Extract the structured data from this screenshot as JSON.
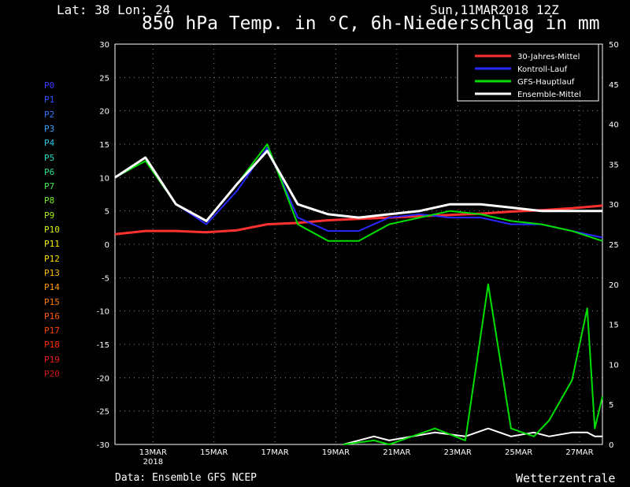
{
  "header": {
    "location": "Lat: 38 Lon: 24",
    "run": "Sun,11MAR2018 12Z",
    "title": "850 hPa Temp. in °C, 6h-Niederschlag in mm"
  },
  "footer": {
    "source": "Data: Ensemble GFS NCEP",
    "brand": "Wetterzentrale"
  },
  "members": {
    "labels": [
      "P0",
      "P1",
      "P2",
      "P3",
      "P4",
      "P5",
      "P6",
      "P7",
      "P8",
      "P9",
      "P10",
      "P11",
      "P12",
      "P13",
      "P14",
      "P15",
      "P16",
      "P17",
      "P18",
      "P19",
      "P20"
    ],
    "colors": [
      "#3c3cff",
      "#2f54ff",
      "#2c78ff",
      "#2ea0ff",
      "#22c4e8",
      "#20d8c0",
      "#22e48a",
      "#40ec50",
      "#70f020",
      "#a8f010",
      "#d8f000",
      "#f8f000",
      "#ffdc00",
      "#ffbc00",
      "#ff9800",
      "#ff7a00",
      "#ff5a00",
      "#ff4000",
      "#ff2800",
      "#f01c1c",
      "#d01414"
    ]
  },
  "legend": {
    "items": [
      {
        "label": "30-Jahres-Mittel",
        "color": "#ff3030"
      },
      {
        "label": "Kontroll-Lauf",
        "color": "#2828ff"
      },
      {
        "label": "GFS-Hauptlauf",
        "color": "#00e000"
      },
      {
        "label": "Ensemble-Mittel",
        "color": "#ffffff"
      }
    ]
  },
  "chart_data": {
    "type": "line",
    "xlim": [
      "2018-03-11T18:00",
      "2018-03-27T18:00"
    ],
    "x_ticks": [
      {
        "value": "2018-03-13T00:00",
        "label": "13MAR",
        "sublabel": "2018"
      },
      {
        "value": "2018-03-15T00:00",
        "label": "15MAR"
      },
      {
        "value": "2018-03-17T00:00",
        "label": "17MAR"
      },
      {
        "value": "2018-03-19T00:00",
        "label": "19MAR"
      },
      {
        "value": "2018-03-21T00:00",
        "label": "21MAR"
      },
      {
        "value": "2018-03-23T00:00",
        "label": "23MAR"
      },
      {
        "value": "2018-03-25T00:00",
        "label": "25MAR"
      },
      {
        "value": "2018-03-27T00:00",
        "label": "27MAR"
      }
    ],
    "y_left": {
      "range": [
        -30,
        30
      ],
      "ticks": [
        30,
        25,
        20,
        15,
        10,
        5,
        0,
        -5,
        -10,
        -15,
        -20,
        -25,
        -30
      ],
      "unit": "°C"
    },
    "y_right": {
      "range": [
        0,
        50
      ],
      "ticks": [
        50,
        45,
        40,
        35,
        30,
        25,
        20,
        15,
        10,
        5,
        0
      ],
      "unit": "mm"
    },
    "grid": true,
    "legend_position": "top-right",
    "temperature_days_from_start": [
      0,
      1,
      2,
      3,
      4,
      5,
      6,
      7,
      8,
      9,
      10,
      11,
      12,
      13,
      14,
      15,
      16
    ],
    "series_temperature": [
      {
        "name": "30-Jahres-Mittel",
        "color": "#ff3030",
        "values": [
          1.5,
          2.0,
          2.0,
          1.8,
          2.1,
          3.0,
          3.2,
          3.6,
          3.8,
          4.0,
          4.2,
          4.4,
          4.6,
          4.9,
          5.1,
          5.4,
          5.8
        ]
      },
      {
        "name": "Kontroll-Lauf",
        "color": "#2828ff",
        "values": [
          10.0,
          13.0,
          6.0,
          3.0,
          8.0,
          14.5,
          4.0,
          2.0,
          2.0,
          4.0,
          4.5,
          4.0,
          4.0,
          3.0,
          3.0,
          2.0,
          1.0
        ]
      },
      {
        "name": "GFS-Hauptlauf",
        "color": "#00e000",
        "values": [
          10.0,
          12.5,
          6.0,
          3.5,
          9.0,
          15.0,
          3.0,
          0.5,
          0.5,
          3.0,
          4.0,
          5.0,
          4.5,
          3.5,
          3.0,
          2.0,
          0.5
        ]
      },
      {
        "name": "Ensemble-Mittel",
        "color": "#ffffff",
        "values": [
          10.0,
          13.0,
          6.0,
          3.5,
          9.0,
          14.0,
          6.0,
          4.5,
          4.0,
          4.5,
          5.0,
          6.0,
          6.0,
          5.5,
          5.0,
          5.0,
          5.0
        ]
      }
    ],
    "precipitation_days_from_start": [
      7.5,
      8.5,
      9.0,
      10.5,
      11.5,
      12.25,
      13.0,
      13.75,
      14.25,
      15.0,
      15.5,
      15.75,
      16.0
    ],
    "series_precipitation": [
      {
        "name": "Ensemble-Mittel",
        "color": "#ffffff",
        "values": [
          0,
          1,
          0.5,
          1.5,
          1,
          2,
          1,
          1.5,
          1,
          1.5,
          1.5,
          1,
          1
        ]
      },
      {
        "name": "GFS-Hauptlauf",
        "color": "#00e000",
        "values": [
          0,
          0.5,
          0,
          2,
          0.5,
          20,
          2,
          1,
          3,
          8,
          17,
          2,
          6
        ]
      }
    ]
  }
}
